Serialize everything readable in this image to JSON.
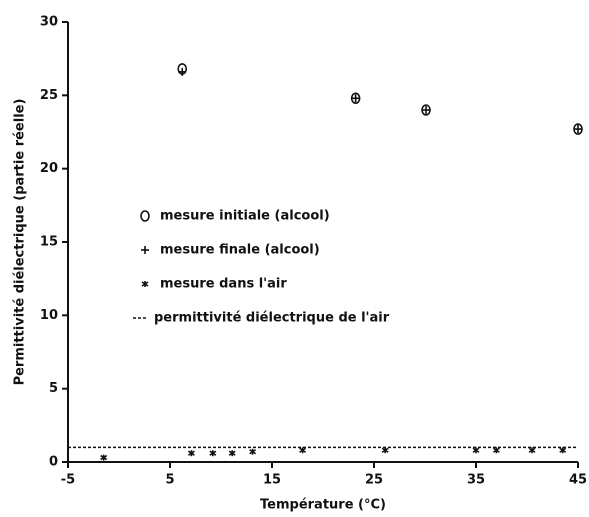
{
  "chart_data": {
    "type": "scatter",
    "x_label": "Température (°C)",
    "y_label": "Permittivité diélectrique (partie réelle)",
    "xlim": [
      -5,
      45
    ],
    "xticks": [
      -5,
      5,
      15,
      25,
      35,
      45
    ],
    "ylim": [
      0,
      30
    ],
    "yticks": [
      0,
      5,
      10,
      15,
      20,
      25,
      30
    ],
    "series": [
      {
        "name": "mesure initiale (alcool)",
        "marker": "circle",
        "color": "#111",
        "x": [
          6.2,
          23.2,
          30.1,
          45
        ],
        "values": [
          26.8,
          24.8,
          24.0,
          22.7
        ]
      },
      {
        "name": "mesure finale (alcool)",
        "marker": "plus",
        "color": "#111",
        "x": [
          6.2,
          23.2,
          30.1,
          45
        ],
        "values": [
          26.6,
          24.8,
          24.0,
          22.7
        ]
      },
      {
        "name": "mesure dans l'air",
        "marker": "asterisk",
        "color": "#111",
        "x": [
          -1.5,
          7.1,
          9.2,
          11.1,
          13.1,
          18.0,
          26.1,
          35.0,
          37.0,
          40.5,
          43.5
        ],
        "values": [
          0.3,
          0.6,
          0.6,
          0.6,
          0.7,
          0.8,
          0.8,
          0.8,
          0.8,
          0.8,
          0.8
        ]
      },
      {
        "name": "permittivité diélectrique de l'air",
        "marker": "dashed-line",
        "color": "#111",
        "x": [
          -5,
          45
        ],
        "values": [
          1,
          1
        ]
      }
    ]
  }
}
